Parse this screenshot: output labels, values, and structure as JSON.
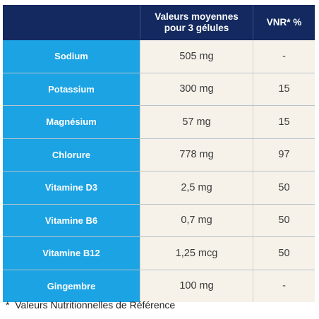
{
  "table": {
    "headers": [
      "",
      "Valeurs moyennes\npour 3 gélules",
      "VNR* %"
    ],
    "rows": [
      {
        "name": "Sodium",
        "value": "505 mg",
        "vnr": "-"
      },
      {
        "name": "Potassium",
        "value": "300 mg",
        "vnr": "15"
      },
      {
        "name": "Magnésium",
        "value": "57 mg",
        "vnr": "15"
      },
      {
        "name": "Chlorure",
        "value": "778 mg",
        "vnr": "97"
      },
      {
        "name": "Vitamine D3",
        "value": "2,5 mg",
        "vnr": "50"
      },
      {
        "name": "Vitamine B6",
        "value": "0,7 mg",
        "vnr": "50"
      },
      {
        "name": "Vitamine B12",
        "value": "1,25 mcg",
        "vnr": "50"
      },
      {
        "name": "Gingembre",
        "value": "100 mg",
        "vnr": "-"
      }
    ]
  },
  "footnote": "*  Valeurs Nutritionnelles de Référence",
  "colors": {
    "header_bg": "#13295f",
    "name_bg": "#1ba3e4",
    "value_bg": "#f6f2e9"
  }
}
